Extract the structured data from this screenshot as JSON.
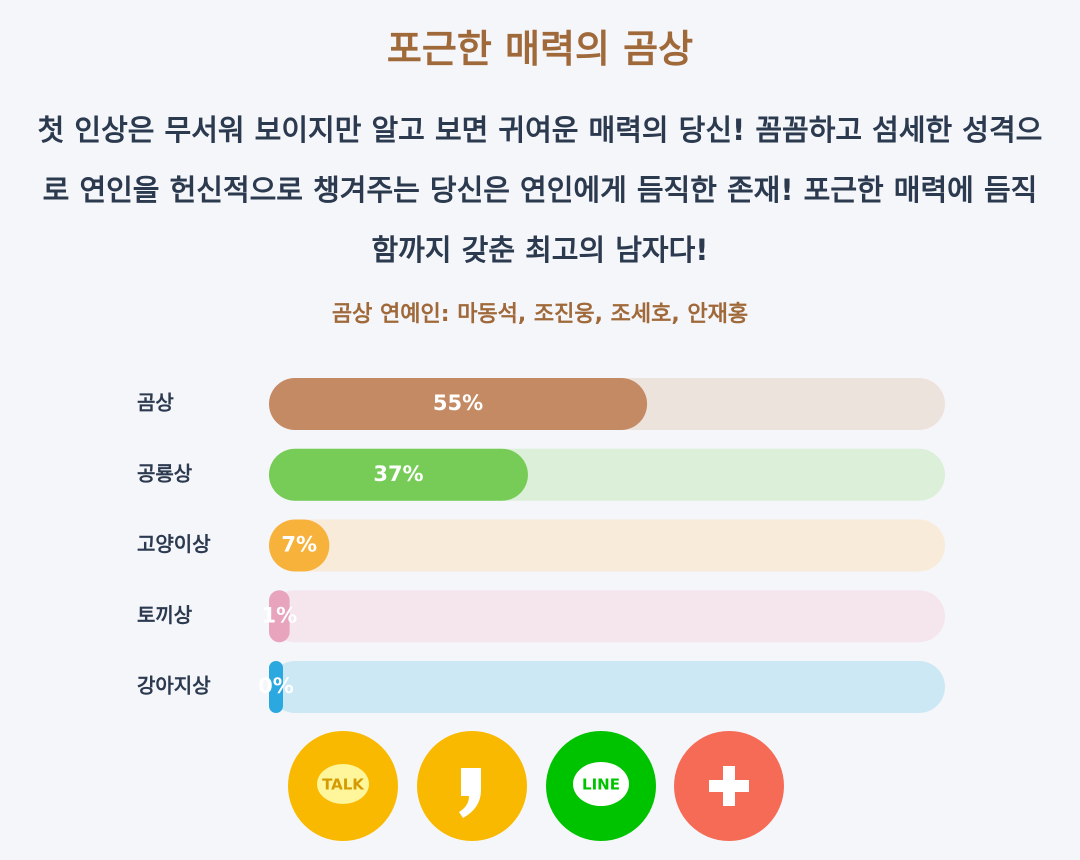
{
  "header": {
    "title": "포근한 매력의 곰상",
    "description": "첫 인상은 무서워 보이지만 알고 보면 귀여운 매력의 당신! 꼼꼼하고 섬세한 성격으로 연인을 헌신적으로 챙겨주는 당신은 연인에게 듬직한 존재! 포근한 매력에 듬직함까지 갖춘 최고의 남자다!",
    "celebrities": "곰상 연예인: 마동석, 조진웅, 조세호, 안재홍"
  },
  "chart_data": {
    "type": "bar",
    "categories": [
      "곰상",
      "공룡상",
      "고양이상",
      "토끼상",
      "강아지상"
    ],
    "values": [
      55,
      37,
      7,
      1,
      0
    ],
    "value_labels": [
      "55%",
      "37%",
      "7%",
      "1%",
      "0%"
    ],
    "colors": [
      "#c48a63",
      "#76cc56",
      "#f7b23b",
      "#e8a4bc",
      "#2ba8e0"
    ],
    "track_colors": [
      "#ede3dd",
      "#dcefd9",
      "#f9ebd9",
      "#f5e6ee",
      "#cce8f4"
    ],
    "xlim": [
      0,
      100
    ]
  },
  "share": {
    "kakaotalk": "TALK",
    "line": "LINE"
  }
}
